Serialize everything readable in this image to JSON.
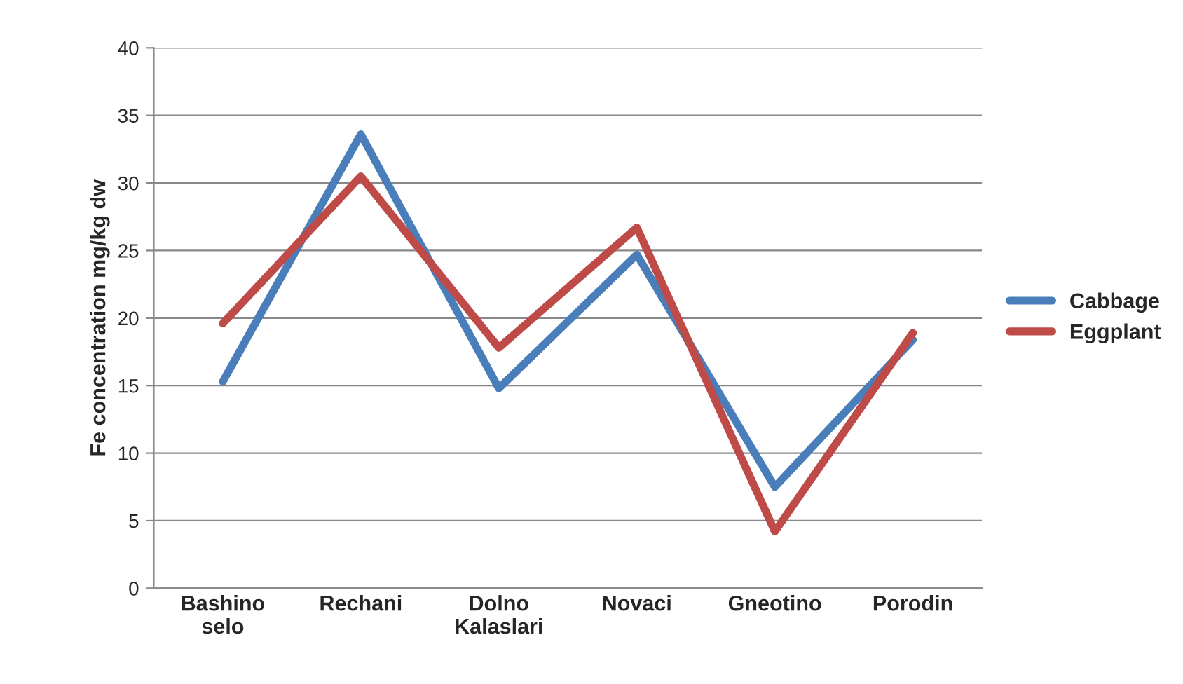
{
  "chart_data": {
    "type": "line",
    "ylabel": "Fe concentration mg/kg dw",
    "categories": [
      "Bashino\nselo",
      "Rechani",
      "Dolno\nKalaslari",
      "Novaci",
      "Gneotino",
      "Porodin"
    ],
    "series": [
      {
        "name": "Cabbage",
        "color": "#4a7ebb",
        "values": [
          15.3,
          33.6,
          14.8,
          24.7,
          7.5,
          18.4
        ]
      },
      {
        "name": "Eggplant",
        "color": "#be4b48",
        "values": [
          19.6,
          30.5,
          17.8,
          26.7,
          4.2,
          18.9
        ]
      }
    ],
    "ylim": [
      0,
      40
    ],
    "yticks": [
      0,
      5,
      10,
      15,
      20,
      25,
      30,
      35,
      40
    ],
    "grid": "y",
    "legend": "right",
    "marker": "none",
    "line_style": "solid"
  }
}
